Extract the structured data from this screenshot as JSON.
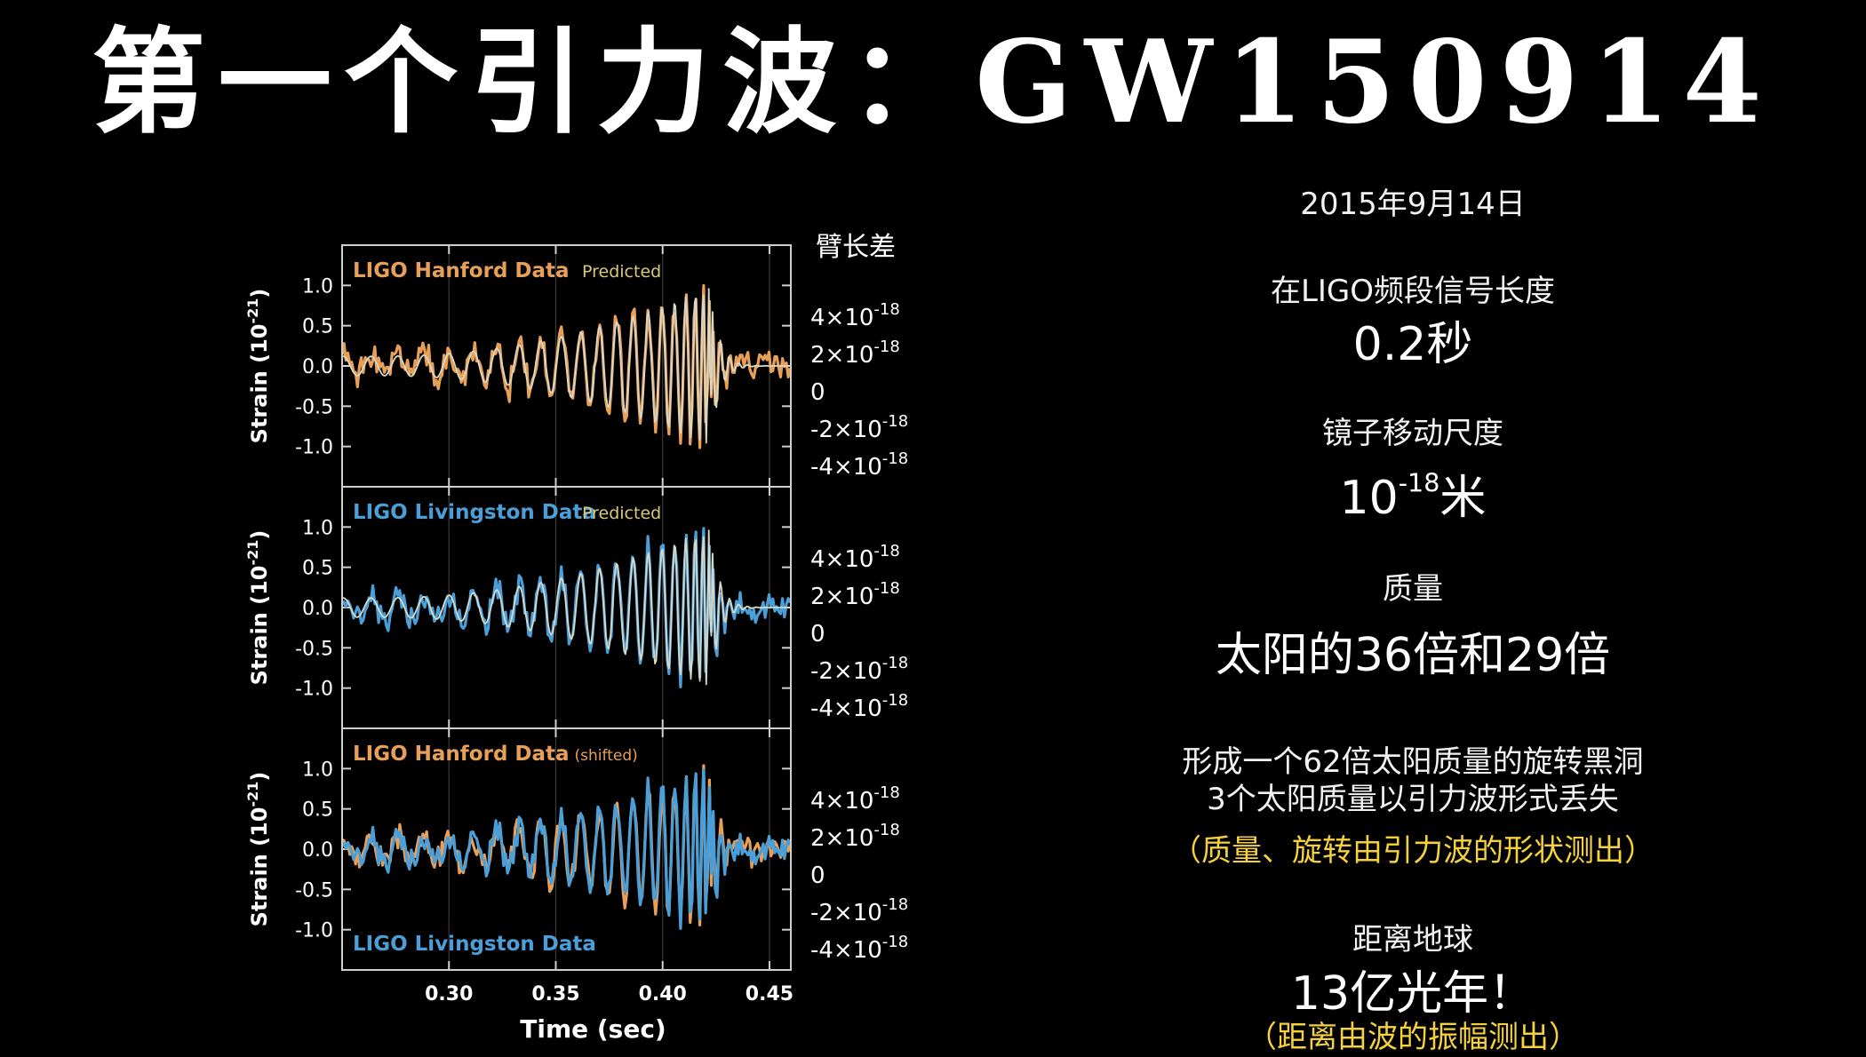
{
  "title": "第一个引力波：GW150914",
  "chart_data": {
    "type": "line",
    "xlabel": "Time (sec)",
    "xlim": [
      0.25,
      0.46
    ],
    "x_ticks": [
      "0.30",
      "0.35",
      "0.40",
      "0.45"
    ],
    "x_tick_values": [
      0.3,
      0.35,
      0.4,
      0.45
    ],
    "ylabel": "Strain (10⁻²¹)",
    "ylim": [
      -1.5,
      1.5
    ],
    "y_ticks": [
      "1.0",
      "0.5",
      "0.0",
      "-0.5",
      "-1.0"
    ],
    "y_tick_values": [
      1.0,
      0.5,
      0.0,
      -0.5,
      -1.0
    ],
    "right_axis_title": "臂长差",
    "right_ticks": [
      "4×10⁻¹⁸",
      "2×10⁻¹⁸",
      "0",
      "-2×10⁻¹⁸",
      "-4×10⁻¹⁸"
    ],
    "colors": {
      "hanford": "#e8a058",
      "livingston": "#4a9fd8",
      "predicted": "#d8d8c8",
      "predicted_label": "#d8c87a"
    },
    "panels": [
      {
        "legend": [
          {
            "text": "LIGO Hanford Data",
            "note": "",
            "color": "#e8a058",
            "position": "top-left"
          },
          {
            "text": "Predicted",
            "note": "",
            "color": "#d8c87a",
            "position": "top"
          }
        ],
        "series": [
          {
            "name": "LIGO Hanford Data",
            "color": "#e8a058",
            "style": "data",
            "seed": 1
          },
          {
            "name": "Predicted",
            "color": "#d8d8c8",
            "style": "template"
          }
        ]
      },
      {
        "legend": [
          {
            "text": "LIGO Livingston Data",
            "note": "",
            "color": "#4a9fd8",
            "position": "top-left"
          },
          {
            "text": "Predicted",
            "note": "",
            "color": "#d8c87a",
            "position": "top"
          }
        ],
        "series": [
          {
            "name": "LIGO Livingston Data",
            "color": "#4a9fd8",
            "style": "data",
            "seed": 2
          },
          {
            "name": "Predicted",
            "color": "#d8d8c8",
            "style": "template"
          }
        ]
      },
      {
        "legend": [
          {
            "text": "LIGO Hanford Data",
            "note": "(shifted)",
            "color": "#e8a058",
            "position": "top-left"
          },
          {
            "text": "LIGO Livingston Data",
            "note": "",
            "color": "#4a9fd8",
            "position": "bottom-left"
          }
        ],
        "series": [
          {
            "name": "LIGO Hanford Data (shifted)",
            "color": "#e8a058",
            "style": "data",
            "seed": 3
          },
          {
            "name": "LIGO Livingston Data",
            "color": "#4a9fd8",
            "style": "data",
            "seed": 2
          }
        ]
      }
    ]
  },
  "info": {
    "date": "2015年9月14日",
    "duration_label": "在LIGO频段信号长度",
    "duration_value": "0.2秒",
    "mirror_label": "镜子移动尺度",
    "mirror_value_base": "10",
    "mirror_value_exp": "-18",
    "mirror_value_unit": "米",
    "mass_label": "质量",
    "mass_value": "太阳的36倍和29倍",
    "result_line1": "形成一个62倍太阳质量的旋转黑洞",
    "result_line2": "3个太阳质量以引力波形式丢失",
    "result_note": "（质量、旋转由引力波的形状测出）",
    "distance_label": "距离地球",
    "distance_value": "13亿光年！",
    "distance_note": "（距离由波的振幅测出）"
  }
}
